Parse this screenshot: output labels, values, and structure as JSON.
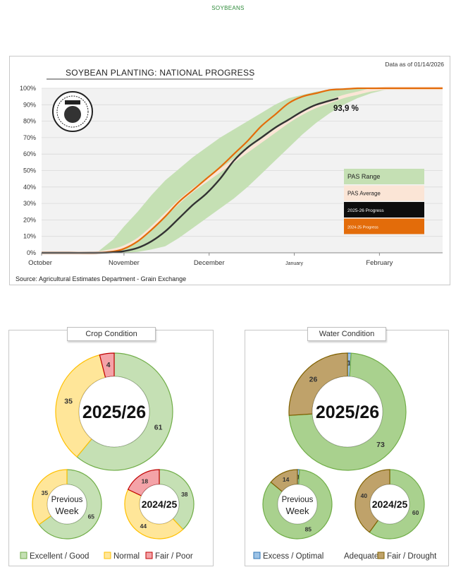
{
  "header": {
    "label": "SOYBEANS"
  },
  "main_chart": {
    "title": "SOYBEAN PLANTING: NATIONAL PROGRESS",
    "date_note": "Data as of 01/14/2026",
    "source": "Source: Agricultural Estimates Department - Grain Exchange",
    "annotation": "93,9 %"
  },
  "crop_condition": {
    "title": "Crop Condition"
  },
  "water_condition": {
    "title": "Water Condition"
  },
  "colors": {
    "green_fill": "#c5e0b4",
    "green_stroke": "#70ad47",
    "yellow_fill": "#ffe699",
    "yellow_stroke": "#ffc000",
    "red_fill": "#f4a3a8",
    "red_stroke": "#c00000",
    "blue_fill": "#9dc3e6",
    "blue_stroke": "#2e75b6",
    "brown_fill": "#bfa26a",
    "brown_stroke": "#7f6000",
    "adequate_fill": "#a9d18e",
    "orange": "#e36c0a",
    "avg": "#fbe5d6",
    "black": "#1a1a1a"
  },
  "chart_data": [
    {
      "type": "area",
      "title": "SOYBEAN PLANTING: NATIONAL PROGRESS",
      "xlabel": "",
      "ylabel": "",
      "x_tick_labels": [
        "October",
        "November",
        "December",
        "January",
        "February"
      ],
      "x_tick_days": [
        0,
        30,
        61,
        92,
        123
      ],
      "x_range_days": [
        0,
        146
      ],
      "ylim": [
        0,
        100
      ],
      "y_ticks": [
        0,
        10,
        20,
        30,
        40,
        50,
        60,
        70,
        80,
        90,
        100
      ],
      "y_tick_labels": [
        "0%",
        "10%",
        "20%",
        "30%",
        "40%",
        "50%",
        "60%",
        "70%",
        "80%",
        "90%",
        "100%"
      ],
      "grid": true,
      "legend": {
        "position": "center-right",
        "entries": [
          "PAS Range",
          "PAS Average",
          "2025-26 Progress",
          "2024-25 Progress"
        ]
      },
      "series": [
        {
          "name": "PAS Range",
          "kind": "band",
          "x": [
            0,
            10,
            20,
            26,
            30,
            35,
            40,
            45,
            50,
            55,
            60,
            65,
            70,
            75,
            80,
            85,
            90,
            95,
            100,
            105,
            110,
            115,
            120,
            125,
            130,
            140,
            146
          ],
          "low": [
            0,
            0,
            0,
            0,
            0,
            0.5,
            2,
            4,
            9,
            15,
            21,
            27,
            33,
            40,
            48,
            56,
            64,
            72,
            79,
            85,
            90,
            94,
            97,
            99,
            100,
            100,
            100
          ],
          "high": [
            0,
            0,
            0,
            8,
            16,
            25,
            35,
            44,
            51,
            58,
            64,
            70,
            75,
            80,
            85,
            90,
            94,
            96,
            98,
            99,
            100,
            100,
            100,
            100,
            100,
            100,
            100
          ]
        },
        {
          "name": "PAS Average",
          "kind": "line",
          "x": [
            0,
            10,
            20,
            26,
            30,
            35,
            40,
            45,
            50,
            55,
            60,
            65,
            70,
            75,
            80,
            85,
            90,
            95,
            100,
            105,
            110,
            115,
            120,
            125,
            130,
            140,
            146
          ],
          "y": [
            0,
            0,
            0,
            1.5,
            3.5,
            8,
            15,
            23,
            31,
            38,
            44,
            50,
            56,
            62,
            68,
            74,
            80,
            85,
            89,
            92,
            95,
            97,
            99,
            100,
            100,
            100,
            100
          ]
        },
        {
          "name": "2025-26 Progress",
          "kind": "line",
          "x": [
            0,
            10,
            20,
            26,
            30,
            35,
            40,
            45,
            50,
            55,
            60,
            65,
            70,
            75,
            80,
            85,
            90,
            95,
            100,
            108
          ],
          "y": [
            0,
            0,
            0,
            0.3,
            1,
            3,
            7,
            13,
            21,
            29,
            36,
            45,
            56,
            64,
            70,
            76,
            81,
            86,
            90,
            93.9
          ]
        },
        {
          "name": "2024-25 Progress",
          "kind": "line",
          "x": [
            0,
            10,
            20,
            26,
            30,
            35,
            40,
            45,
            50,
            55,
            60,
            65,
            70,
            75,
            80,
            85,
            90,
            95,
            100,
            105,
            110,
            115,
            120,
            125,
            130,
            140,
            146
          ],
          "y": [
            0,
            0,
            0,
            0.8,
            2.5,
            7,
            14,
            22,
            31,
            38,
            45,
            52,
            60,
            68,
            77,
            84,
            91,
            95,
            97,
            99,
            99.5,
            100,
            100,
            100,
            100,
            100,
            100
          ]
        }
      ]
    },
    {
      "type": "pie",
      "title": "Crop Condition",
      "donut": "2025/26",
      "center_label": "2025/26",
      "slices": [
        {
          "label": "Excellent / Good",
          "value": 61
        },
        {
          "label": "Normal",
          "value": 35
        },
        {
          "label": "Fair / Poor",
          "value": 4
        }
      ]
    },
    {
      "type": "pie",
      "title": "Crop Condition",
      "donut": "Previous Week",
      "center_label_1": "Previous",
      "center_label_2": "Week",
      "slices": [
        {
          "label": "Excellent / Good",
          "value": 65
        },
        {
          "label": "Normal",
          "value": 35
        },
        {
          "label": "Fair / Poor",
          "value": 0
        }
      ]
    },
    {
      "type": "pie",
      "title": "Crop Condition",
      "donut": "2024/25",
      "center_label": "2024/25",
      "slices": [
        {
          "label": "Excellent / Good",
          "value": 38
        },
        {
          "label": "Normal",
          "value": 44
        },
        {
          "label": "Fair / Poor",
          "value": 18
        }
      ]
    },
    {
      "type": "pie",
      "title": "Water Condition",
      "donut": "2025/26",
      "center_label": "2025/26",
      "slices": [
        {
          "label": "Excess / Optimal",
          "value": 1
        },
        {
          "label": "Adequate",
          "value": 73
        },
        {
          "label": "Fair / Drought",
          "value": 26
        }
      ]
    },
    {
      "type": "pie",
      "title": "Water Condition",
      "donut": "Previous Week",
      "center_label_1": "Previous",
      "center_label_2": "Week",
      "slices": [
        {
          "label": "Excess / Optimal",
          "value": 1
        },
        {
          "label": "Adequate",
          "value": 85
        },
        {
          "label": "Fair / Drought",
          "value": 14
        }
      ]
    },
    {
      "type": "pie",
      "title": "Water Condition",
      "donut": "2024/25",
      "center_label": "2024/25",
      "slices": [
        {
          "label": "Excess / Optimal",
          "value": 0
        },
        {
          "label": "Adequate",
          "value": 60
        },
        {
          "label": "Fair / Drought",
          "value": 40
        }
      ]
    }
  ],
  "crop_legend": [
    "Excellent / Good",
    "Normal",
    "Fair / Poor"
  ],
  "water_legend": [
    "Excess / Optimal",
    "Adequate",
    "Fair / Drought"
  ]
}
